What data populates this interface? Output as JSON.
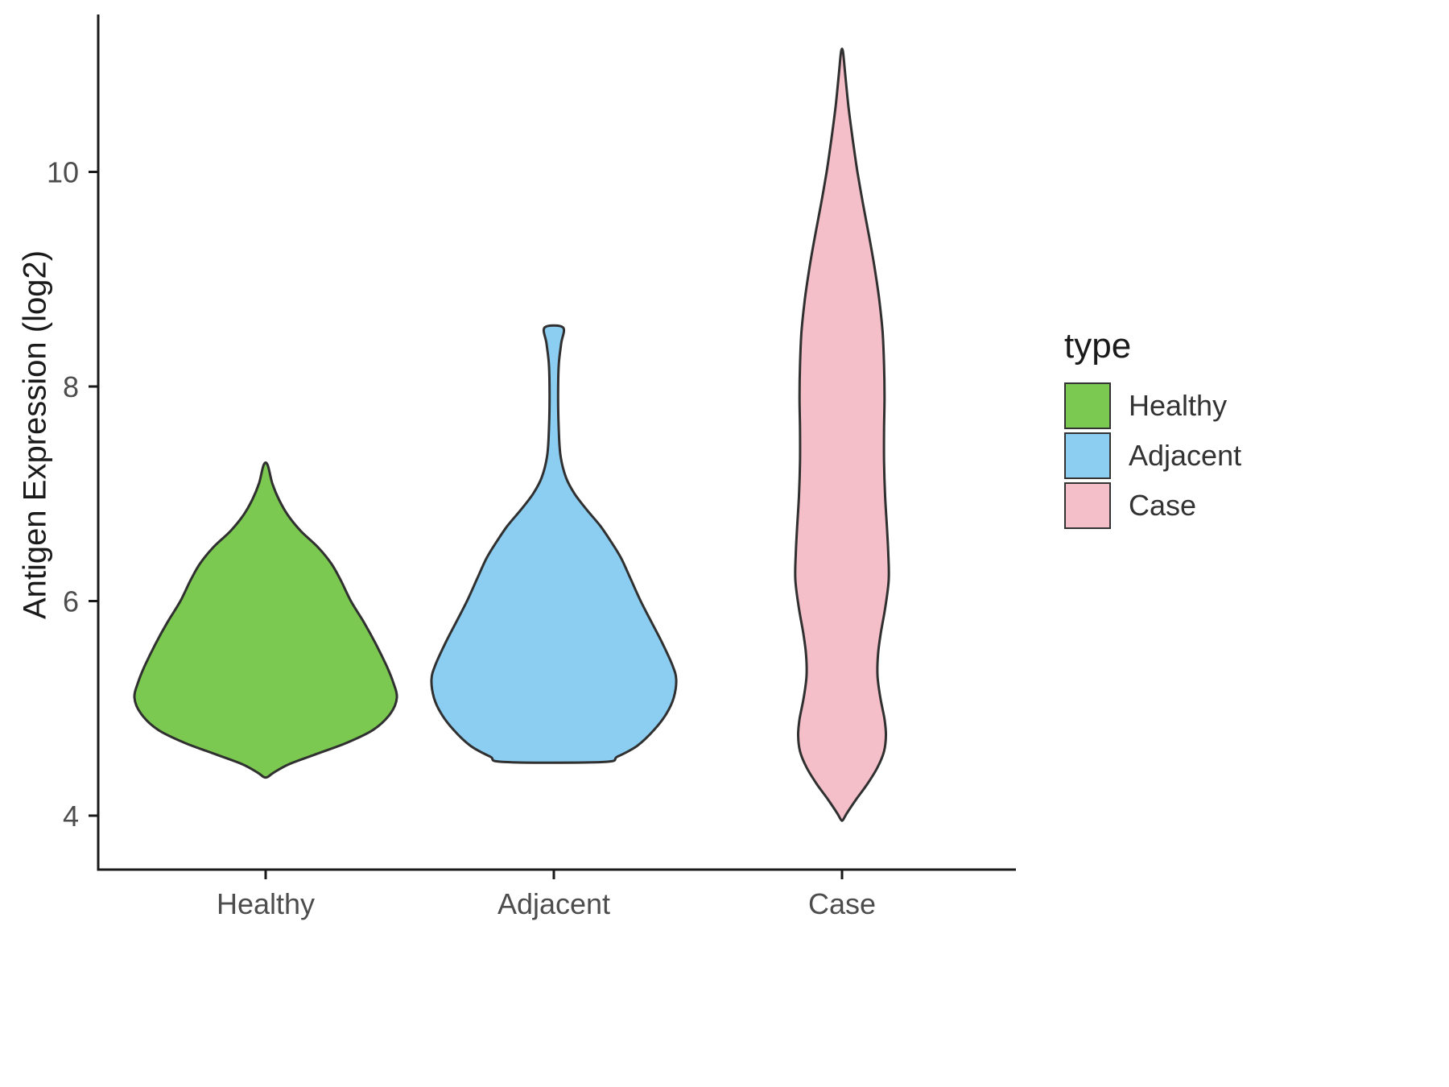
{
  "figure": {
    "background": "#FFFFFF"
  },
  "chart_data": {
    "type": "violin",
    "title": "",
    "xlabel": "",
    "ylabel": "Antigen Expression (log2)",
    "ylim": [
      3.6,
      11.4
    ],
    "yticks": [
      4,
      6,
      8,
      10
    ],
    "categories": [
      "Healthy",
      "Adjacent",
      "Case"
    ],
    "legend": {
      "title": "type",
      "entries": [
        {
          "label": "Healthy",
          "color": "#7BC950"
        },
        {
          "label": "Adjacent",
          "color": "#8CCEF2"
        },
        {
          "label": "Case",
          "color": "#F5BFC9"
        }
      ]
    },
    "axis_color": "#1A1A1A",
    "tick_label_color": "#4D4D4D",
    "outline_color": "#303030",
    "series": [
      {
        "name": "Healthy",
        "color": "#7BC950",
        "range": [
          4.36,
          7.27
        ],
        "max_halfwidth": 163,
        "profile": [
          [
            7.27,
            0.015
          ],
          [
            7.1,
            0.05
          ],
          [
            6.95,
            0.1
          ],
          [
            6.8,
            0.17
          ],
          [
            6.65,
            0.27
          ],
          [
            6.5,
            0.4
          ],
          [
            6.35,
            0.5
          ],
          [
            6.2,
            0.57
          ],
          [
            6.0,
            0.65
          ],
          [
            5.8,
            0.75
          ],
          [
            5.6,
            0.84
          ],
          [
            5.4,
            0.92
          ],
          [
            5.25,
            0.97
          ],
          [
            5.1,
            1.0
          ],
          [
            4.95,
            0.95
          ],
          [
            4.8,
            0.82
          ],
          [
            4.68,
            0.62
          ],
          [
            4.58,
            0.4
          ],
          [
            4.48,
            0.18
          ],
          [
            4.4,
            0.06
          ],
          [
            4.36,
            0.015
          ]
        ]
      },
      {
        "name": "Adjacent",
        "color": "#8CCEF2",
        "range": [
          4.5,
          8.55
        ],
        "max_halfwidth": 152,
        "profile": [
          [
            8.55,
            0.075
          ],
          [
            8.4,
            0.06
          ],
          [
            8.2,
            0.04
          ],
          [
            7.9,
            0.035
          ],
          [
            7.6,
            0.04
          ],
          [
            7.35,
            0.055
          ],
          [
            7.15,
            0.1
          ],
          [
            7.0,
            0.17
          ],
          [
            6.85,
            0.27
          ],
          [
            6.7,
            0.38
          ],
          [
            6.55,
            0.47
          ],
          [
            6.4,
            0.55
          ],
          [
            6.2,
            0.63
          ],
          [
            6.0,
            0.71
          ],
          [
            5.8,
            0.8
          ],
          [
            5.6,
            0.89
          ],
          [
            5.4,
            0.97
          ],
          [
            5.27,
            1.0
          ],
          [
            5.1,
            0.98
          ],
          [
            4.95,
            0.92
          ],
          [
            4.8,
            0.82
          ],
          [
            4.65,
            0.68
          ],
          [
            4.55,
            0.52
          ],
          [
            4.5,
            0.4
          ]
        ]
      },
      {
        "name": "Case",
        "color": "#F5BFC9",
        "range": [
          3.96,
          11.12
        ],
        "max_halfwidth": 58,
        "profile": [
          [
            11.12,
            0.02
          ],
          [
            10.9,
            0.07
          ],
          [
            10.6,
            0.14
          ],
          [
            10.3,
            0.23
          ],
          [
            10.0,
            0.33
          ],
          [
            9.7,
            0.45
          ],
          [
            9.4,
            0.58
          ],
          [
            9.1,
            0.7
          ],
          [
            8.8,
            0.8
          ],
          [
            8.5,
            0.87
          ],
          [
            8.2,
            0.9
          ],
          [
            7.9,
            0.91
          ],
          [
            7.6,
            0.9
          ],
          [
            7.3,
            0.9
          ],
          [
            7.0,
            0.92
          ],
          [
            6.7,
            0.96
          ],
          [
            6.45,
            0.99
          ],
          [
            6.2,
            1.0
          ],
          [
            5.95,
            0.93
          ],
          [
            5.7,
            0.83
          ],
          [
            5.5,
            0.77
          ],
          [
            5.3,
            0.76
          ],
          [
            5.1,
            0.82
          ],
          [
            4.9,
            0.91
          ],
          [
            4.75,
            0.94
          ],
          [
            4.6,
            0.9
          ],
          [
            4.45,
            0.76
          ],
          [
            4.3,
            0.55
          ],
          [
            4.15,
            0.3
          ],
          [
            4.02,
            0.1
          ],
          [
            3.96,
            0.02
          ]
        ]
      }
    ]
  }
}
